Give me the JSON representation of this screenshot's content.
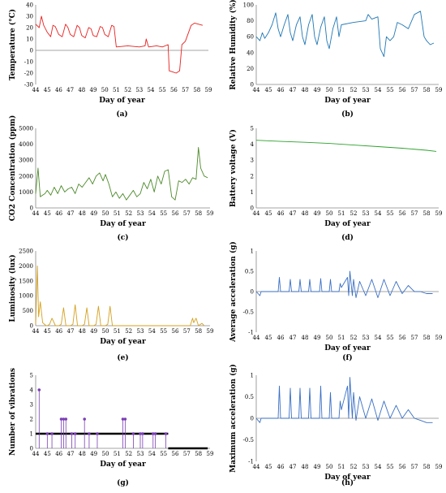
{
  "chart_data": [
    {
      "panel": "(a)",
      "type": "line",
      "color": "#e8201f",
      "xlabel": "Day of year",
      "ylabel": "Temperature (°C)",
      "xlim": [
        44,
        59
      ],
      "ylim": [
        -30,
        40
      ],
      "xticks": [
        44,
        45,
        46,
        47,
        48,
        49,
        50,
        51,
        52,
        53,
        54,
        55,
        56,
        57,
        58,
        59
      ],
      "yticks": [
        -30,
        -20,
        -10,
        0,
        10,
        20,
        30,
        40
      ],
      "series": [
        {
          "x": [
            44.0,
            44.3,
            44.5,
            44.7,
            45.0,
            45.3,
            45.5,
            45.7,
            46.0,
            46.3,
            46.6,
            46.8,
            47.0,
            47.3,
            47.6,
            47.8,
            48.0,
            48.3,
            48.6,
            48.8,
            49.0,
            49.3,
            49.6,
            49.8,
            50.0,
            50.3,
            50.6,
            50.8,
            51.0,
            52.0,
            53.0,
            53.5,
            53.6,
            53.8,
            54.5,
            55.0,
            55.5,
            55.6,
            55.9,
            56.2,
            56.5,
            56.7,
            57.0,
            57.5,
            57.8,
            58.5
          ],
          "y": [
            23,
            20,
            30,
            22,
            16,
            12,
            22,
            21,
            14,
            12,
            23,
            20,
            14,
            12,
            22,
            20,
            13,
            11,
            20,
            19,
            13,
            12,
            21,
            20,
            14,
            12,
            22,
            21,
            3,
            4,
            3,
            4,
            10,
            3,
            4,
            3,
            5,
            -18,
            -19,
            -20,
            -18,
            5,
            8,
            22,
            24,
            22
          ]
        }
      ]
    },
    {
      "panel": "(b)",
      "type": "line",
      "color": "#1f77b4",
      "xlabel": "Day of year",
      "ylabel": "Relative Humidity (%)",
      "xlim": [
        44,
        59
      ],
      "ylim": [
        0,
        100
      ],
      "xticks": [
        44,
        45,
        46,
        47,
        48,
        49,
        50,
        51,
        52,
        53,
        54,
        55,
        56,
        57,
        58,
        59
      ],
      "yticks": [
        0,
        20,
        40,
        60,
        80,
        100
      ],
      "series": [
        {
          "x": [
            44.0,
            44.3,
            44.5,
            44.7,
            45.0,
            45.3,
            45.6,
            45.8,
            46.0,
            46.3,
            46.6,
            46.8,
            47.0,
            47.3,
            47.6,
            47.8,
            48.0,
            48.3,
            48.6,
            48.8,
            49.0,
            49.3,
            49.6,
            49.8,
            50.0,
            50.3,
            50.6,
            50.8,
            51.0,
            52.0,
            53.0,
            53.2,
            53.5,
            54.0,
            54.2,
            54.5,
            54.7,
            55.0,
            55.3,
            55.6,
            56.0,
            56.5,
            57.0,
            57.5,
            57.8,
            58.0,
            58.3,
            58.6
          ],
          "y": [
            60,
            55,
            65,
            58,
            65,
            75,
            90,
            70,
            60,
            75,
            88,
            65,
            55,
            75,
            85,
            60,
            50,
            75,
            88,
            60,
            50,
            72,
            85,
            55,
            45,
            70,
            85,
            60,
            75,
            78,
            80,
            88,
            82,
            85,
            45,
            35,
            60,
            55,
            60,
            78,
            75,
            70,
            88,
            92,
            60,
            55,
            50,
            52
          ]
        }
      ]
    },
    {
      "panel": "(c)",
      "type": "line",
      "color": "#4d8a2a",
      "xlabel": "Day of year",
      "ylabel": "CO2 Concentration (ppm)",
      "xlim": [
        44,
        59
      ],
      "ylim": [
        0,
        5000
      ],
      "xticks": [
        44,
        45,
        46,
        47,
        48,
        49,
        50,
        51,
        52,
        53,
        54,
        55,
        56,
        57,
        58,
        59
      ],
      "yticks": [
        0,
        1000,
        2000,
        3000,
        4000,
        5000
      ],
      "series": [
        {
          "x": [
            44.0,
            44.2,
            44.4,
            44.6,
            44.8,
            45.0,
            45.3,
            45.6,
            45.9,
            46.2,
            46.5,
            46.8,
            47.1,
            47.4,
            47.7,
            48.0,
            48.3,
            48.6,
            48.9,
            49.2,
            49.5,
            49.8,
            50.0,
            50.3,
            50.6,
            50.9,
            51.2,
            51.5,
            51.8,
            52.1,
            52.4,
            52.7,
            53.0,
            53.3,
            53.6,
            53.9,
            54.2,
            54.5,
            54.8,
            55.1,
            55.4,
            55.7,
            56.0,
            56.3,
            56.6,
            56.9,
            57.2,
            57.5,
            57.8,
            58.0,
            58.2,
            58.5,
            58.8
          ],
          "y": [
            900,
            2500,
            700,
            800,
            900,
            1100,
            800,
            1300,
            900,
            1400,
            1000,
            1200,
            1300,
            900,
            1500,
            1300,
            1600,
            1900,
            1500,
            2000,
            2200,
            1700,
            2100,
            1500,
            700,
            1000,
            600,
            900,
            500,
            800,
            1100,
            700,
            900,
            1600,
            1200,
            1800,
            1000,
            2000,
            1500,
            2300,
            2400,
            700,
            500,
            1700,
            1600,
            1800,
            1500,
            1900,
            1800,
            3800,
            2500,
            2000,
            1900
          ]
        }
      ]
    },
    {
      "panel": "(d)",
      "type": "line",
      "color": "#2ca02c",
      "xlabel": "Day of year",
      "ylabel": "Battery voltage (V)",
      "xlim": [
        44,
        59
      ],
      "ylim": [
        0,
        5
      ],
      "xticks": [
        44,
        45,
        46,
        47,
        48,
        49,
        50,
        51,
        52,
        53,
        54,
        55,
        56,
        57,
        58,
        59
      ],
      "yticks": [
        0,
        1,
        2,
        3,
        4,
        5
      ],
      "series": [
        {
          "x": [
            44.0,
            46.0,
            48.0,
            50.0,
            52.0,
            54.0,
            56.0,
            58.0,
            58.8
          ],
          "y": [
            4.25,
            4.18,
            4.12,
            4.05,
            3.95,
            3.85,
            3.75,
            3.62,
            3.55
          ]
        }
      ]
    },
    {
      "panel": "(e)",
      "type": "line",
      "color": "#d4a020",
      "xlabel": "Day of year",
      "ylabel": "Luminosity (lux)",
      "xlim": [
        44,
        59
      ],
      "ylim": [
        0,
        2500
      ],
      "xticks": [
        44,
        45,
        46,
        47,
        48,
        49,
        50,
        51,
        52,
        53,
        54,
        55,
        56,
        57,
        58,
        59
      ],
      "yticks": [
        0,
        500,
        1000,
        1500,
        2000,
        2500
      ],
      "series": [
        {
          "x": [
            44.0,
            44.15,
            44.25,
            44.4,
            44.6,
            44.9,
            45.0,
            45.2,
            45.4,
            45.7,
            45.9,
            46.0,
            46.2,
            46.4,
            46.6,
            46.8,
            47.0,
            47.2,
            47.4,
            47.6,
            47.8,
            48.0,
            48.2,
            48.4,
            48.6,
            48.8,
            49.0,
            49.2,
            49.4,
            49.6,
            49.8,
            50.0,
            50.2,
            50.4,
            50.6,
            50.8,
            51.0,
            56.0,
            57.3,
            57.5,
            57.6,
            57.8,
            58.0,
            58.3,
            58.5
          ],
          "y": [
            50,
            2000,
            300,
            800,
            100,
            0,
            0,
            50,
            250,
            0,
            0,
            0,
            50,
            600,
            0,
            0,
            0,
            50,
            700,
            0,
            0,
            0,
            50,
            600,
            0,
            0,
            0,
            50,
            650,
            0,
            0,
            0,
            50,
            650,
            0,
            0,
            0,
            0,
            0,
            250,
            100,
            250,
            0,
            80,
            0
          ]
        }
      ]
    },
    {
      "panel": "(f)",
      "type": "line",
      "color": "#3a6fc4",
      "xlabel": "Day of year",
      "ylabel": "Average acceleration (g)",
      "xlim": [
        44,
        59
      ],
      "ylim": [
        -1,
        1
      ],
      "xticks": [
        44,
        45,
        46,
        47,
        48,
        49,
        50,
        51,
        52,
        53,
        54,
        55,
        56,
        57,
        58,
        59
      ],
      "yticks": [
        -1,
        -0.5,
        0,
        0.5,
        1
      ],
      "series": [
        {
          "x": [
            44.0,
            44.3,
            44.4,
            45.0,
            45.8,
            45.9,
            46.0,
            46.7,
            46.8,
            46.9,
            47.5,
            47.6,
            47.7,
            48.3,
            48.4,
            48.5,
            49.2,
            49.3,
            49.4,
            50.0,
            50.1,
            50.2,
            50.8,
            50.9,
            51.0,
            51.5,
            51.6,
            51.7,
            51.9,
            52.0,
            52.2,
            52.5,
            53.0,
            53.5,
            54.0,
            54.5,
            55.0,
            55.5,
            56.0,
            56.5,
            57.0,
            57.5,
            58.0,
            58.5
          ],
          "y": [
            0.0,
            -0.1,
            0.0,
            0.0,
            0.0,
            0.35,
            0.0,
            0.0,
            0.3,
            0.0,
            0.0,
            0.3,
            0.0,
            0.0,
            0.3,
            0.0,
            0.0,
            0.32,
            0.0,
            0.0,
            0.3,
            0.0,
            0.0,
            0.2,
            0.1,
            0.35,
            -0.1,
            0.5,
            -0.1,
            0.3,
            -0.15,
            0.25,
            -0.1,
            0.3,
            -0.15,
            0.3,
            -0.1,
            0.25,
            -0.05,
            0.15,
            0.0,
            0.0,
            -0.05,
            -0.05
          ]
        }
      ]
    },
    {
      "panel": "(g)",
      "type": "scatter",
      "color": "#7b3fb5",
      "xlabel": "Day of year",
      "ylabel": "Number of vibrations",
      "xlim": [
        44,
        59
      ],
      "ylim": [
        0,
        5
      ],
      "xticks": [
        44,
        45,
        46,
        47,
        48,
        49,
        50,
        51,
        52,
        53,
        54,
        55,
        56,
        57,
        58,
        59
      ],
      "yticks": [
        0,
        1,
        2,
        3,
        4,
        5
      ],
      "series": [
        {
          "x": [
            44.3,
            45.0,
            45.4,
            46.2,
            46.4,
            46.6,
            47.1,
            47.4,
            48.2,
            48.6,
            49.3,
            51.5,
            51.7,
            52.4,
            53.0,
            53.2,
            54.1,
            54.3,
            55.2
          ],
          "y": [
            4,
            1,
            1,
            2,
            2,
            2,
            1,
            1,
            2,
            1,
            1,
            2,
            2,
            1,
            1,
            1,
            1,
            1,
            1
          ]
        }
      ]
    },
    {
      "panel": "(h)",
      "type": "line",
      "color": "#3a6fc4",
      "xlabel": "Day of year",
      "ylabel": "Maximum acceleration (g)",
      "xlim": [
        44,
        59
      ],
      "ylim": [
        -1,
        1
      ],
      "xticks": [
        44,
        45,
        46,
        47,
        48,
        49,
        50,
        51,
        52,
        53,
        54,
        55,
        56,
        57,
        58,
        59
      ],
      "yticks": [
        -1,
        -0.5,
        0,
        0.5,
        1
      ],
      "series": [
        {
          "x": [
            44.0,
            44.3,
            44.4,
            45.0,
            45.8,
            45.9,
            46.0,
            46.7,
            46.8,
            46.9,
            47.5,
            47.6,
            47.7,
            48.3,
            48.4,
            48.5,
            49.2,
            49.3,
            49.4,
            50.0,
            50.1,
            50.2,
            50.8,
            50.9,
            51.0,
            51.5,
            51.6,
            51.7,
            51.9,
            52.0,
            52.2,
            52.5,
            53.0,
            53.5,
            54.0,
            54.5,
            55.0,
            55.5,
            56.0,
            56.5,
            57.0,
            57.5,
            58.0,
            58.5
          ],
          "y": [
            0.0,
            -0.1,
            0.0,
            0.0,
            0.0,
            0.75,
            0.0,
            0.0,
            0.7,
            0.0,
            0.0,
            0.7,
            0.0,
            0.0,
            0.7,
            0.0,
            0.0,
            0.75,
            0.0,
            0.0,
            0.6,
            0.0,
            0.0,
            0.4,
            0.2,
            0.75,
            0.0,
            0.95,
            0.0,
            0.6,
            -0.05,
            0.5,
            0.0,
            0.45,
            -0.05,
            0.4,
            0.0,
            0.3,
            0.0,
            0.2,
            0.0,
            -0.05,
            -0.1,
            -0.1
          ]
        }
      ]
    }
  ]
}
